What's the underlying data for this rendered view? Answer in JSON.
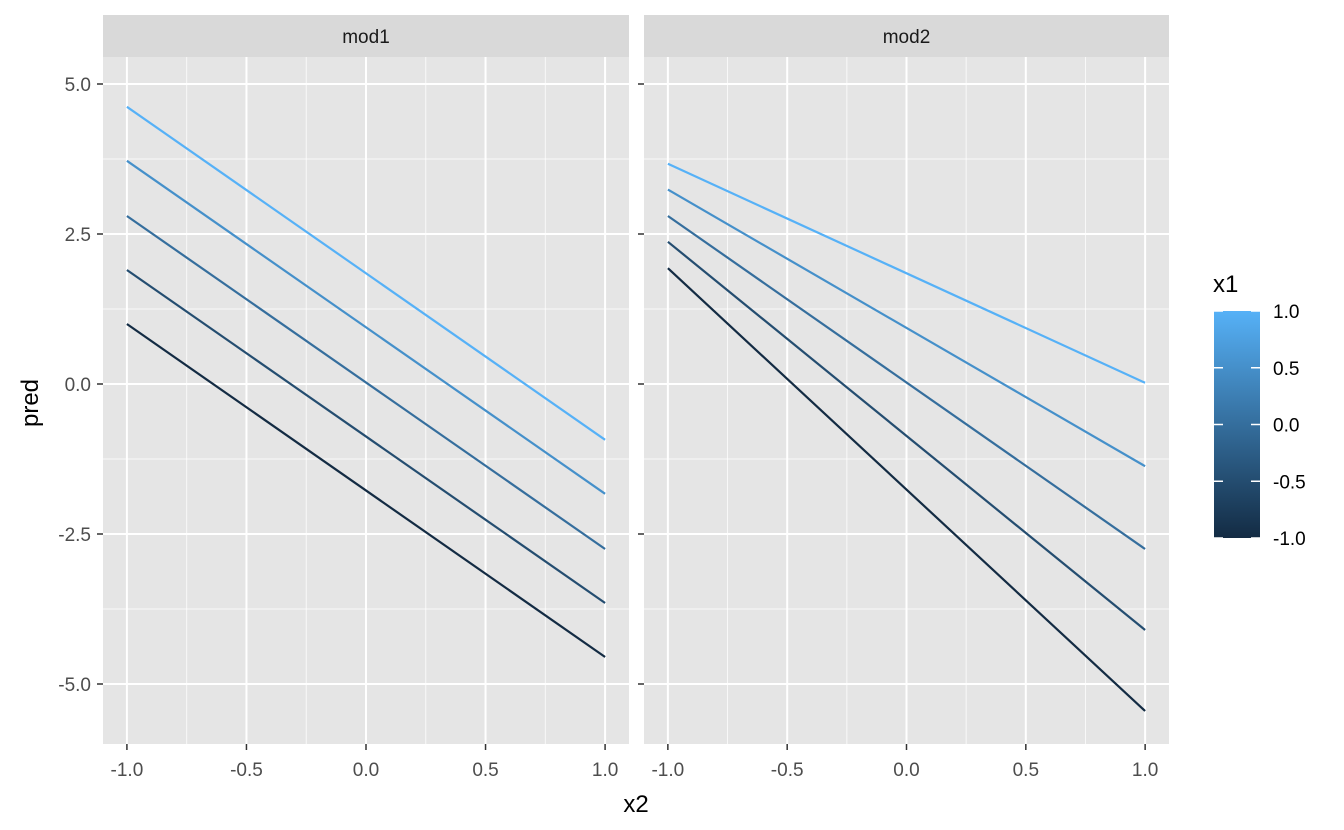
{
  "chart_data": {
    "type": "line",
    "facets": [
      {
        "label": "mod1",
        "series": [
          {
            "x1": -1.0,
            "x": [
              -1,
              1
            ],
            "y": [
              1.0,
              -4.55
            ]
          },
          {
            "x1": -0.5,
            "x": [
              -1,
              1
            ],
            "y": [
              1.9,
              -3.65
            ]
          },
          {
            "x1": 0.0,
            "x": [
              -1,
              1
            ],
            "y": [
              2.8,
              -2.75
            ]
          },
          {
            "x1": 0.5,
            "x": [
              -1,
              1
            ],
            "y": [
              3.72,
              -1.83
            ]
          },
          {
            "x1": 1.0,
            "x": [
              -1,
              1
            ],
            "y": [
              4.62,
              -0.93
            ]
          }
        ]
      },
      {
        "label": "mod2",
        "series": [
          {
            "x1": -1.0,
            "x": [
              -1,
              1
            ],
            "y": [
              1.93,
              -5.45
            ]
          },
          {
            "x1": -0.5,
            "x": [
              -1,
              1
            ],
            "y": [
              2.37,
              -4.1
            ]
          },
          {
            "x1": 0.0,
            "x": [
              -1,
              1
            ],
            "y": [
              2.8,
              -2.75
            ]
          },
          {
            "x1": 0.5,
            "x": [
              -1,
              1
            ],
            "y": [
              3.24,
              -1.37
            ]
          },
          {
            "x1": 1.0,
            "x": [
              -1,
              1
            ],
            "y": [
              3.67,
              0.02
            ]
          }
        ]
      }
    ],
    "xlabel": "x2",
    "ylabel": "pred",
    "xlim": [
      -1.1,
      1.1
    ],
    "ylim": [
      -6.0,
      5.45
    ],
    "x_ticks": [
      -1.0,
      -0.5,
      0.0,
      0.5,
      1.0
    ],
    "x_tick_labels": [
      "-1.0",
      "-0.5",
      "0.0",
      "0.5",
      "1.0"
    ],
    "y_ticks": [
      5.0,
      2.5,
      0.0,
      -2.5,
      -5.0
    ],
    "y_tick_labels": [
      "5.0",
      "2.5",
      "0.0",
      "-2.5",
      "-5.0"
    ],
    "grid": true,
    "legend": {
      "title": "x1",
      "position": "right",
      "type": "colorbar",
      "range": [
        -1.0,
        1.0
      ],
      "ticks": [
        1.0,
        0.5,
        0.0,
        -0.5,
        -1.0
      ],
      "tick_labels": [
        "1.0",
        "0.5",
        "0.0",
        "-0.5",
        "-1.0"
      ],
      "color_low": "#132B43",
      "color_high": "#56B1F7"
    },
    "colors": {
      "panel_bg": "#e5e5e5",
      "strip_bg": "#d9d9d9",
      "grid": "#ffffff"
    }
  }
}
